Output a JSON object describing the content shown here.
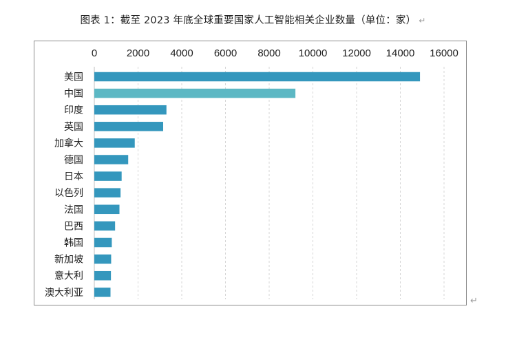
{
  "title": "图表 1：截至 2023 年底全球重要国家人工智能相关企业数量（单位：家）",
  "para_mark": "↵",
  "chart_data": {
    "type": "bar",
    "orientation": "horizontal",
    "title": "图表 1：截至 2023 年底全球重要国家人工智能相关企业数量（单位：家）",
    "categories": [
      "美国",
      "中国",
      "印度",
      "英国",
      "加拿大",
      "德国",
      "日本",
      "以色列",
      "法国",
      "巴西",
      "韩国",
      "新加坡",
      "意大利",
      "澳大利亚"
    ],
    "values": [
      14900,
      9200,
      3300,
      3150,
      1850,
      1550,
      1250,
      1200,
      1150,
      950,
      800,
      770,
      760,
      740
    ],
    "xlim": [
      0,
      16000
    ],
    "xticks": [
      0,
      2000,
      4000,
      6000,
      8000,
      10000,
      12000,
      14000,
      16000
    ],
    "x_axis_position": "top",
    "grid": "vertical dashed",
    "highlight_index": 1,
    "colors": {
      "bar": "#3497bd",
      "highlight": "#5cb8c4",
      "grid": "#d6d6d6"
    }
  }
}
